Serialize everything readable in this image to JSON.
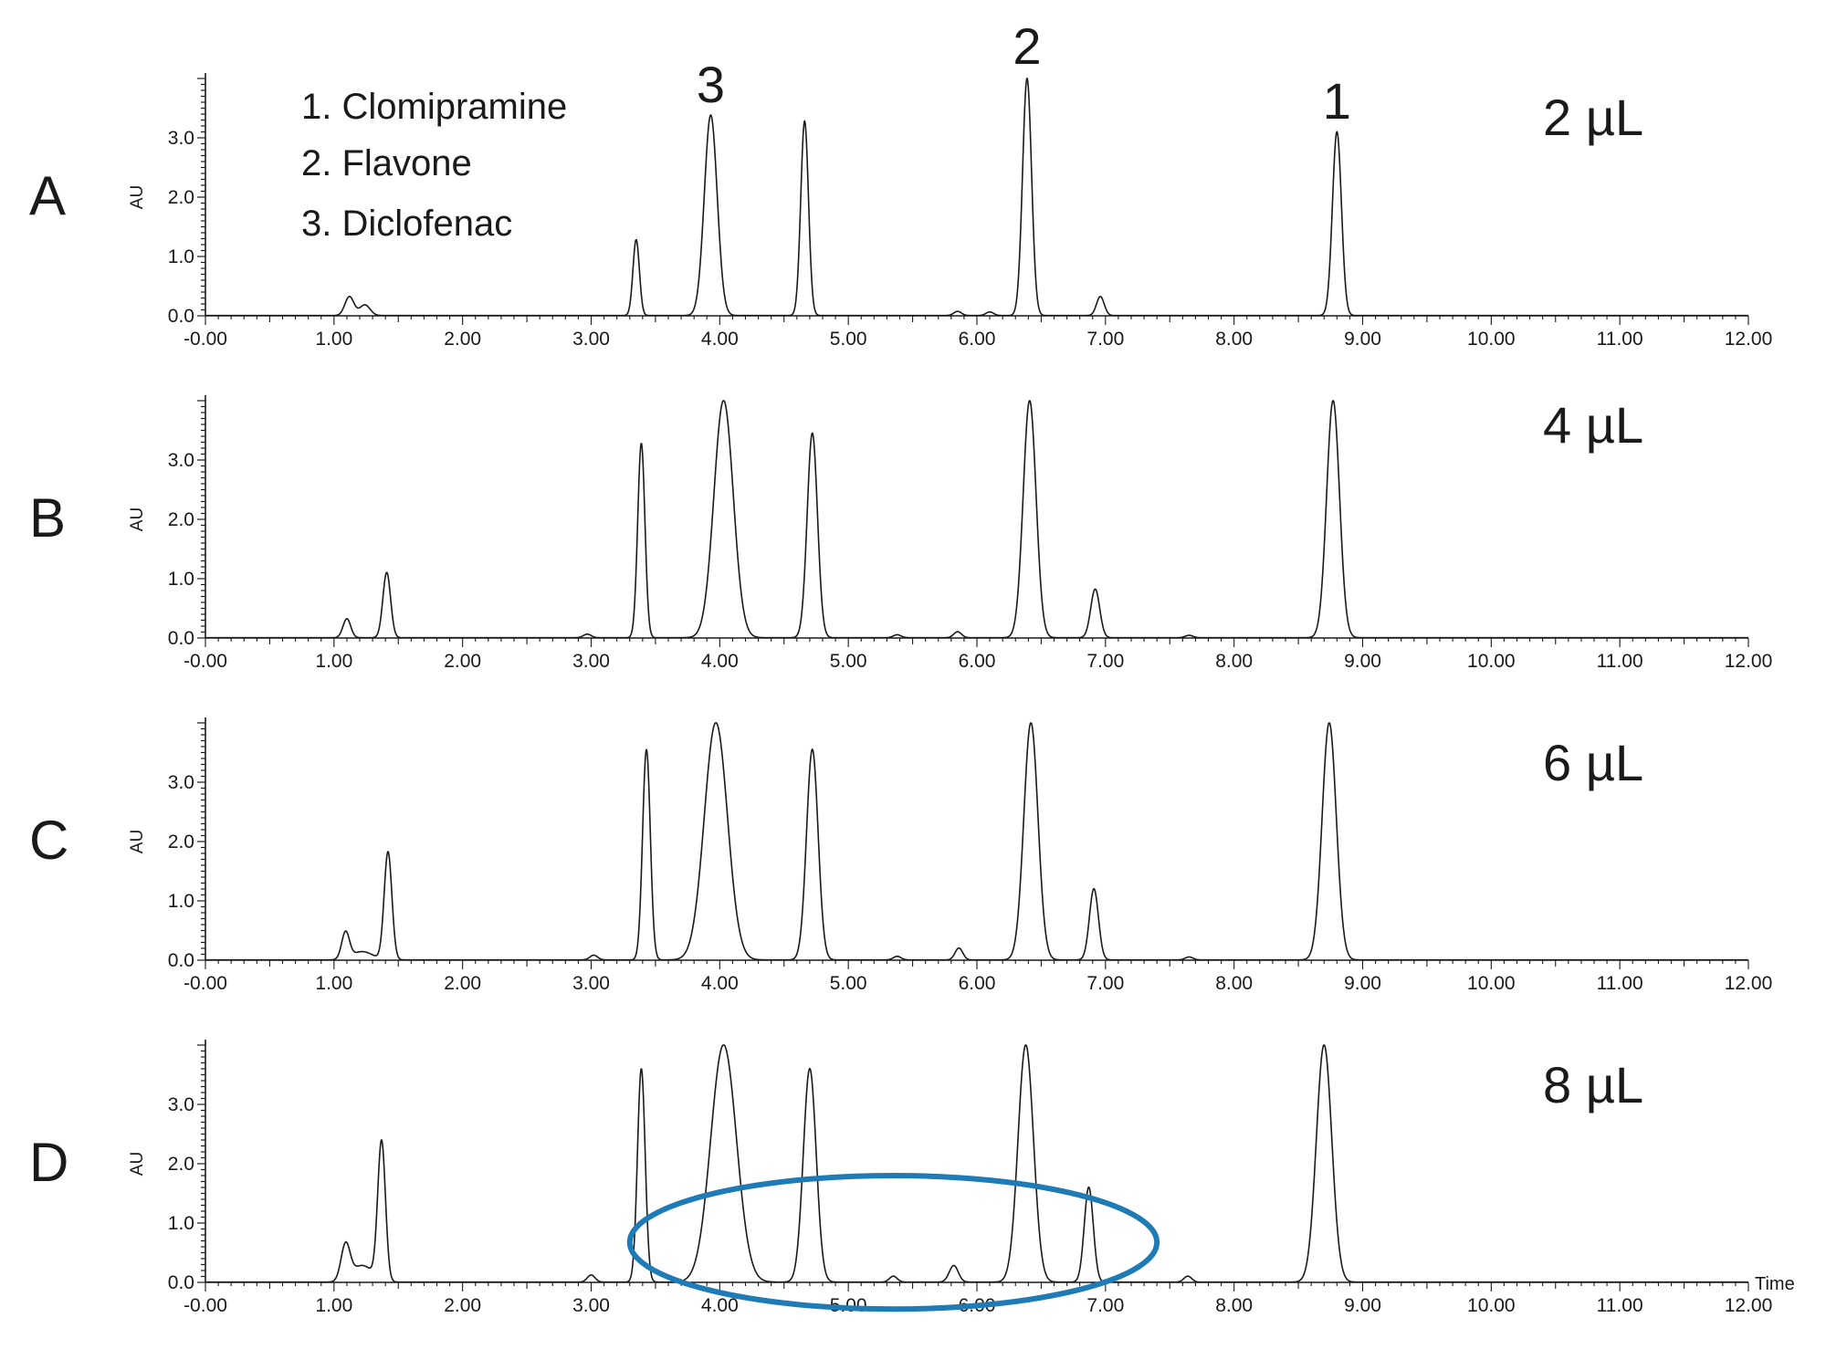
{
  "legend": {
    "entries": [
      "1. Clomipramine",
      "2. Flavone",
      "3. Diclofenac"
    ]
  },
  "peak_labels": [
    {
      "text": "3",
      "x": 3.93
    },
    {
      "text": "2",
      "x": 6.39
    },
    {
      "text": "1",
      "x": 8.8
    }
  ],
  "x_axis_label": "Time",
  "colors": {
    "trace": "#1a1a1a",
    "highlight_ellipse": "#1f7bb6"
  },
  "chart_data": [
    {
      "type": "line",
      "panel": "A",
      "volume_label": "2 µL",
      "ylabel": "AU",
      "xlim": [
        0,
        12
      ],
      "ylim": [
        0,
        4.0
      ],
      "x_ticks": [
        "-0.00",
        "1.00",
        "2.00",
        "3.00",
        "4.00",
        "5.00",
        "6.00",
        "7.00",
        "8.00",
        "9.00",
        "10.00",
        "11.00",
        "12.00"
      ],
      "y_ticks": [
        "0.0",
        "1.0",
        "2.0",
        "3.0"
      ],
      "peaks": [
        {
          "x": 1.12,
          "height": 0.32,
          "width": 0.035
        },
        {
          "x": 1.24,
          "height": 0.18,
          "width": 0.04
        },
        {
          "x": 3.35,
          "height": 1.28,
          "width": 0.025
        },
        {
          "x": 3.93,
          "height": 3.38,
          "width": 0.05
        },
        {
          "x": 4.66,
          "height": 3.28,
          "width": 0.03
        },
        {
          "x": 5.85,
          "height": 0.07,
          "width": 0.03
        },
        {
          "x": 6.1,
          "height": 0.06,
          "width": 0.03
        },
        {
          "x": 6.39,
          "height": 4.0,
          "width": 0.035
        },
        {
          "x": 6.96,
          "height": 0.32,
          "width": 0.03
        },
        {
          "x": 8.8,
          "height": 3.1,
          "width": 0.035
        }
      ]
    },
    {
      "type": "line",
      "panel": "B",
      "volume_label": "4 µL",
      "ylabel": "AU",
      "xlim": [
        0,
        12
      ],
      "ylim": [
        0,
        4.0
      ],
      "x_ticks": [
        "-0.00",
        "1.00",
        "2.00",
        "3.00",
        "4.00",
        "5.00",
        "6.00",
        "7.00",
        "8.00",
        "9.00",
        "10.00",
        "11.00",
        "12.00"
      ],
      "y_ticks": [
        "0.0",
        "1.0",
        "2.0",
        "3.0"
      ],
      "peaks": [
        {
          "x": 1.1,
          "height": 0.32,
          "width": 0.03
        },
        {
          "x": 1.41,
          "height": 1.1,
          "width": 0.03
        },
        {
          "x": 2.97,
          "height": 0.06,
          "width": 0.03
        },
        {
          "x": 3.39,
          "height": 3.28,
          "width": 0.028
        },
        {
          "x": 4.03,
          "height": 4.0,
          "width": 0.075
        },
        {
          "x": 4.72,
          "height": 3.45,
          "width": 0.04
        },
        {
          "x": 5.38,
          "height": 0.05,
          "width": 0.03
        },
        {
          "x": 5.85,
          "height": 0.1,
          "width": 0.03
        },
        {
          "x": 6.41,
          "height": 4.0,
          "width": 0.05
        },
        {
          "x": 6.92,
          "height": 0.82,
          "width": 0.035
        },
        {
          "x": 7.65,
          "height": 0.04,
          "width": 0.03
        },
        {
          "x": 8.77,
          "height": 4.0,
          "width": 0.05
        }
      ]
    },
    {
      "type": "line",
      "panel": "C",
      "volume_label": "6 µL",
      "ylabel": "AU",
      "xlim": [
        0,
        12
      ],
      "ylim": [
        0,
        4.0
      ],
      "x_ticks": [
        "-0.00",
        "1.00",
        "2.00",
        "3.00",
        "4.00",
        "5.00",
        "6.00",
        "7.00",
        "8.00",
        "9.00",
        "10.00",
        "11.00",
        "12.00"
      ],
      "y_ticks": [
        "0.0",
        "1.0",
        "2.0",
        "3.0"
      ],
      "peaks": [
        {
          "x": 1.09,
          "height": 0.45,
          "width": 0.03
        },
        {
          "x": 1.22,
          "height": 0.14,
          "width": 0.08
        },
        {
          "x": 1.42,
          "height": 1.82,
          "width": 0.03
        },
        {
          "x": 3.02,
          "height": 0.08,
          "width": 0.03
        },
        {
          "x": 3.43,
          "height": 3.55,
          "width": 0.03
        },
        {
          "x": 3.97,
          "height": 4.0,
          "width": 0.09
        },
        {
          "x": 4.72,
          "height": 3.55,
          "width": 0.045
        },
        {
          "x": 5.38,
          "height": 0.06,
          "width": 0.03
        },
        {
          "x": 5.86,
          "height": 0.2,
          "width": 0.03
        },
        {
          "x": 6.42,
          "height": 4.0,
          "width": 0.055
        },
        {
          "x": 6.91,
          "height": 1.2,
          "width": 0.035
        },
        {
          "x": 7.65,
          "height": 0.05,
          "width": 0.03
        },
        {
          "x": 8.74,
          "height": 4.0,
          "width": 0.055
        }
      ]
    },
    {
      "type": "line",
      "panel": "D",
      "volume_label": "8 µL",
      "ylabel": "AU",
      "xlim": [
        0,
        12
      ],
      "ylim": [
        0,
        4.0
      ],
      "x_ticks": [
        "-0.00",
        "1.00",
        "2.00",
        "3.00",
        "4.00",
        "5.00",
        "6.00",
        "7.00",
        "8.00",
        "9.00",
        "10.00",
        "11.00",
        "12.00"
      ],
      "y_ticks": [
        "0.0",
        "1.0",
        "2.0",
        "3.0"
      ],
      "peaks": [
        {
          "x": 1.09,
          "height": 0.6,
          "width": 0.035
        },
        {
          "x": 1.22,
          "height": 0.28,
          "width": 0.08
        },
        {
          "x": 1.37,
          "height": 2.35,
          "width": 0.03
        },
        {
          "x": 3.0,
          "height": 0.12,
          "width": 0.03
        },
        {
          "x": 3.39,
          "height": 3.6,
          "width": 0.03
        },
        {
          "x": 4.03,
          "height": 4.0,
          "width": 0.1
        },
        {
          "x": 4.7,
          "height": 3.6,
          "width": 0.05
        },
        {
          "x": 5.35,
          "height": 0.1,
          "width": 0.03
        },
        {
          "x": 5.82,
          "height": 0.28,
          "width": 0.035
        },
        {
          "x": 6.38,
          "height": 4.0,
          "width": 0.06
        },
        {
          "x": 6.87,
          "height": 1.6,
          "width": 0.035
        },
        {
          "x": 7.64,
          "height": 0.1,
          "width": 0.03
        },
        {
          "x": 8.7,
          "height": 4.0,
          "width": 0.06
        }
      ],
      "highlight": {
        "shape": "ellipse",
        "x_range": [
          3.3,
          7.4
        ],
        "y_range": [
          -0.45,
          1.8
        ]
      }
    }
  ]
}
